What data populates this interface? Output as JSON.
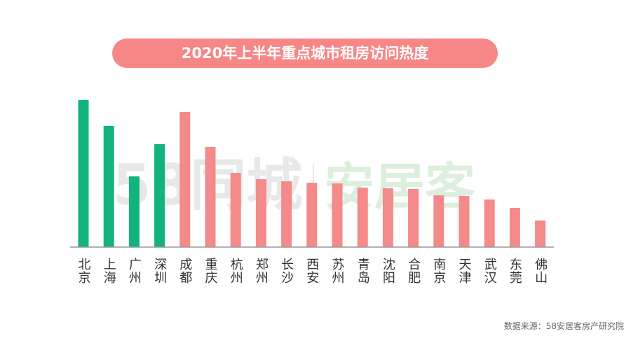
{
  "chart_data": {
    "type": "bar",
    "title": "2020年上半年重点城市租房访问热度",
    "categories": [
      "北京",
      "上海",
      "广州",
      "深圳",
      "成都",
      "重庆",
      "杭州",
      "郑州",
      "长沙",
      "西安",
      "苏州",
      "青岛",
      "沈阳",
      "合肥",
      "南京",
      "天津",
      "武汉",
      "东莞",
      "佛山"
    ],
    "values": [
      210,
      173,
      101,
      147,
      193,
      143,
      106,
      97,
      94,
      92,
      91,
      85,
      84,
      83,
      74,
      73,
      68,
      56,
      38
    ],
    "colors": [
      "#12b47c",
      "#12b47c",
      "#12b47c",
      "#12b47c",
      "#f48a8a",
      "#f48a8a",
      "#f48a8a",
      "#f48a8a",
      "#f48a8a",
      "#f48a8a",
      "#f48a8a",
      "#f48a8a",
      "#f48a8a",
      "#f48a8a",
      "#f48a8a",
      "#f48a8a",
      "#f48a8a",
      "#f48a8a",
      "#f48a8a"
    ],
    "watermark": [
      "58同城",
      "安居客"
    ],
    "source": "数据来源：58安居客房产研究院"
  }
}
